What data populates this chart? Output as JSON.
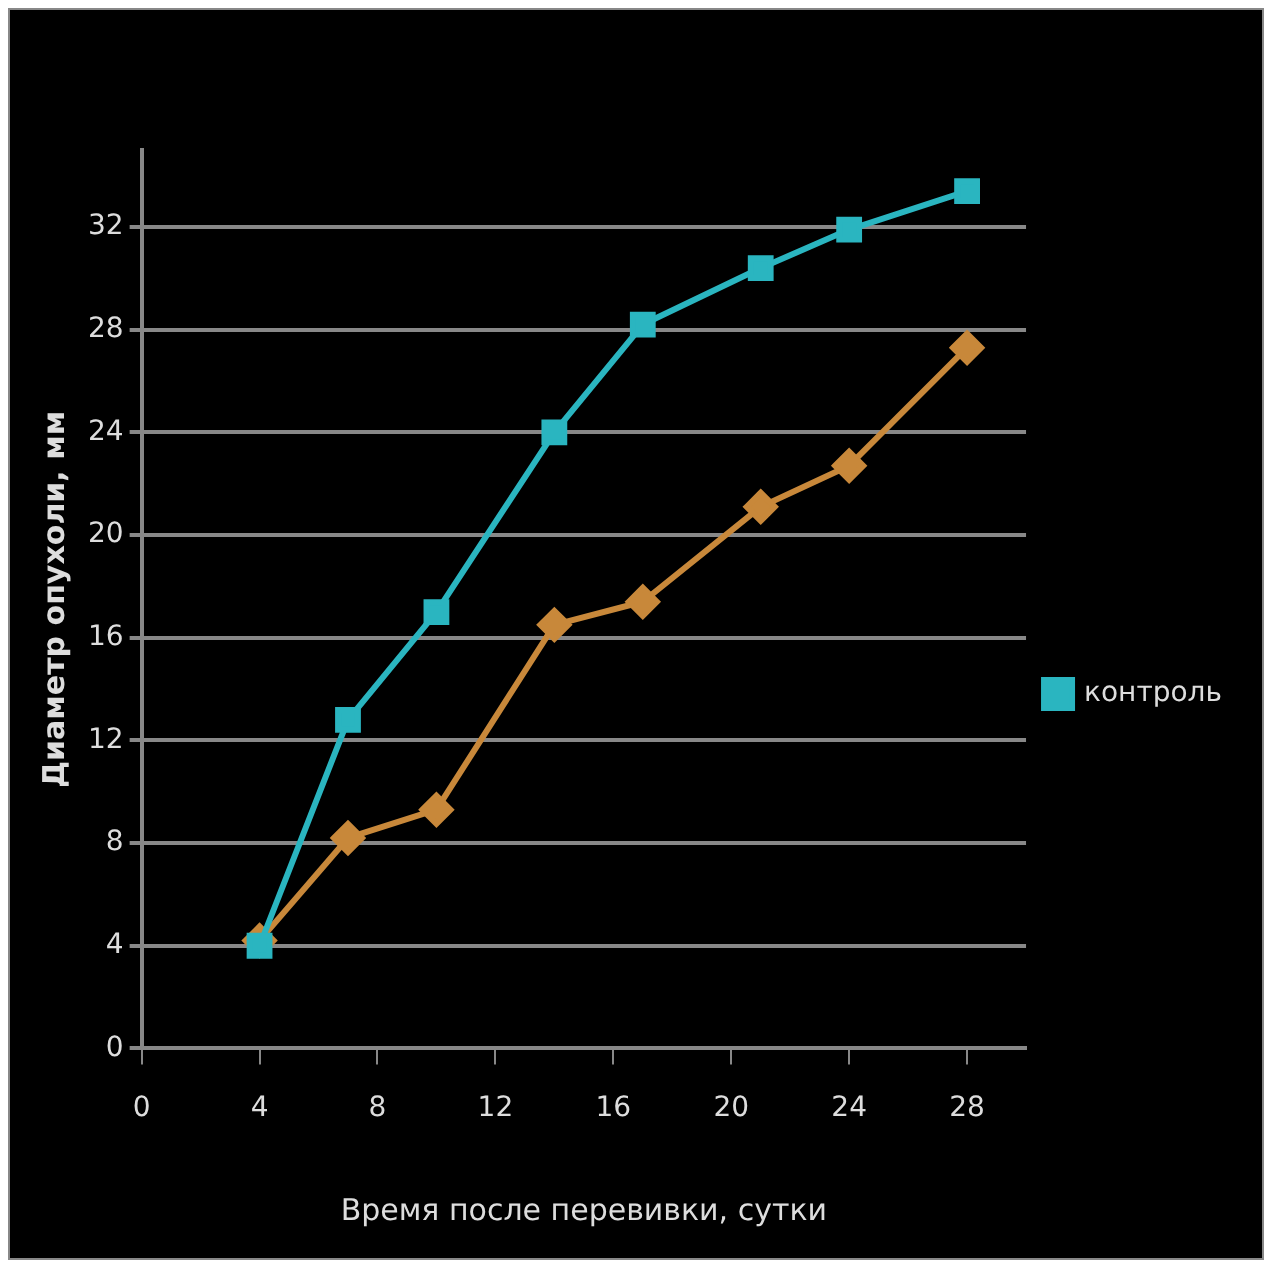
{
  "chart_data": {
    "type": "line",
    "xlabel": "Время после перевивки, сутки",
    "ylabel": "Диаметр опухоли, мм",
    "xlim": [
      0,
      30
    ],
    "xticks": [
      0,
      4,
      8,
      12,
      16,
      20,
      24,
      28
    ],
    "ylim": [
      0,
      35
    ],
    "yticks": [
      0,
      4,
      8,
      12,
      16,
      20,
      24,
      28,
      32
    ],
    "grid": "y",
    "legend": "right",
    "line_style": "solid",
    "series": [
      {
        "color": "#c8883a",
        "marker": "diamond",
        "x": [
          4,
          7,
          10,
          14,
          17,
          21,
          24,
          28
        ],
        "values": [
          4.2,
          8.2,
          9.3,
          16.5,
          17.4,
          21.1,
          22.7,
          27.3
        ]
      },
      {
        "name": "контроль",
        "color": "#2ab5c0",
        "marker": "square",
        "x": [
          4,
          7,
          10,
          14,
          17,
          21,
          24,
          28
        ],
        "values": [
          4,
          12.8,
          17,
          24,
          28.2,
          30.4,
          31.9,
          33.4
        ]
      }
    ]
  }
}
